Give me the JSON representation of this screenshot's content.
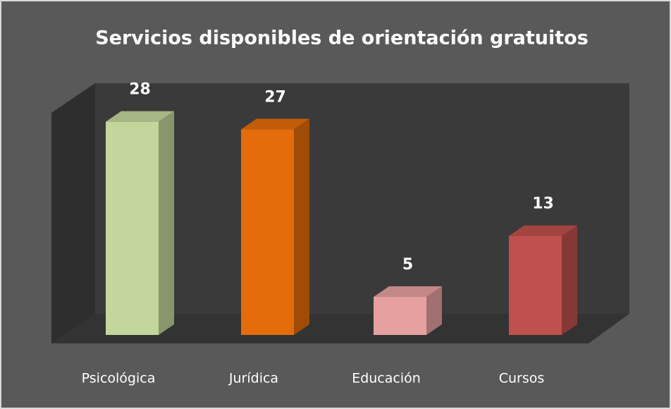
{
  "chart_data": {
    "type": "bar3d",
    "title": "Servicios disponibles de orientación gratuitos",
    "categories": [
      "Psicológica",
      "Jurídica",
      "Educación",
      "Cursos"
    ],
    "values": [
      28,
      27,
      5,
      13
    ],
    "colors": [
      "#c3d69b",
      "#e46c0a",
      "#e6a0a0",
      "#c0504d"
    ]
  }
}
